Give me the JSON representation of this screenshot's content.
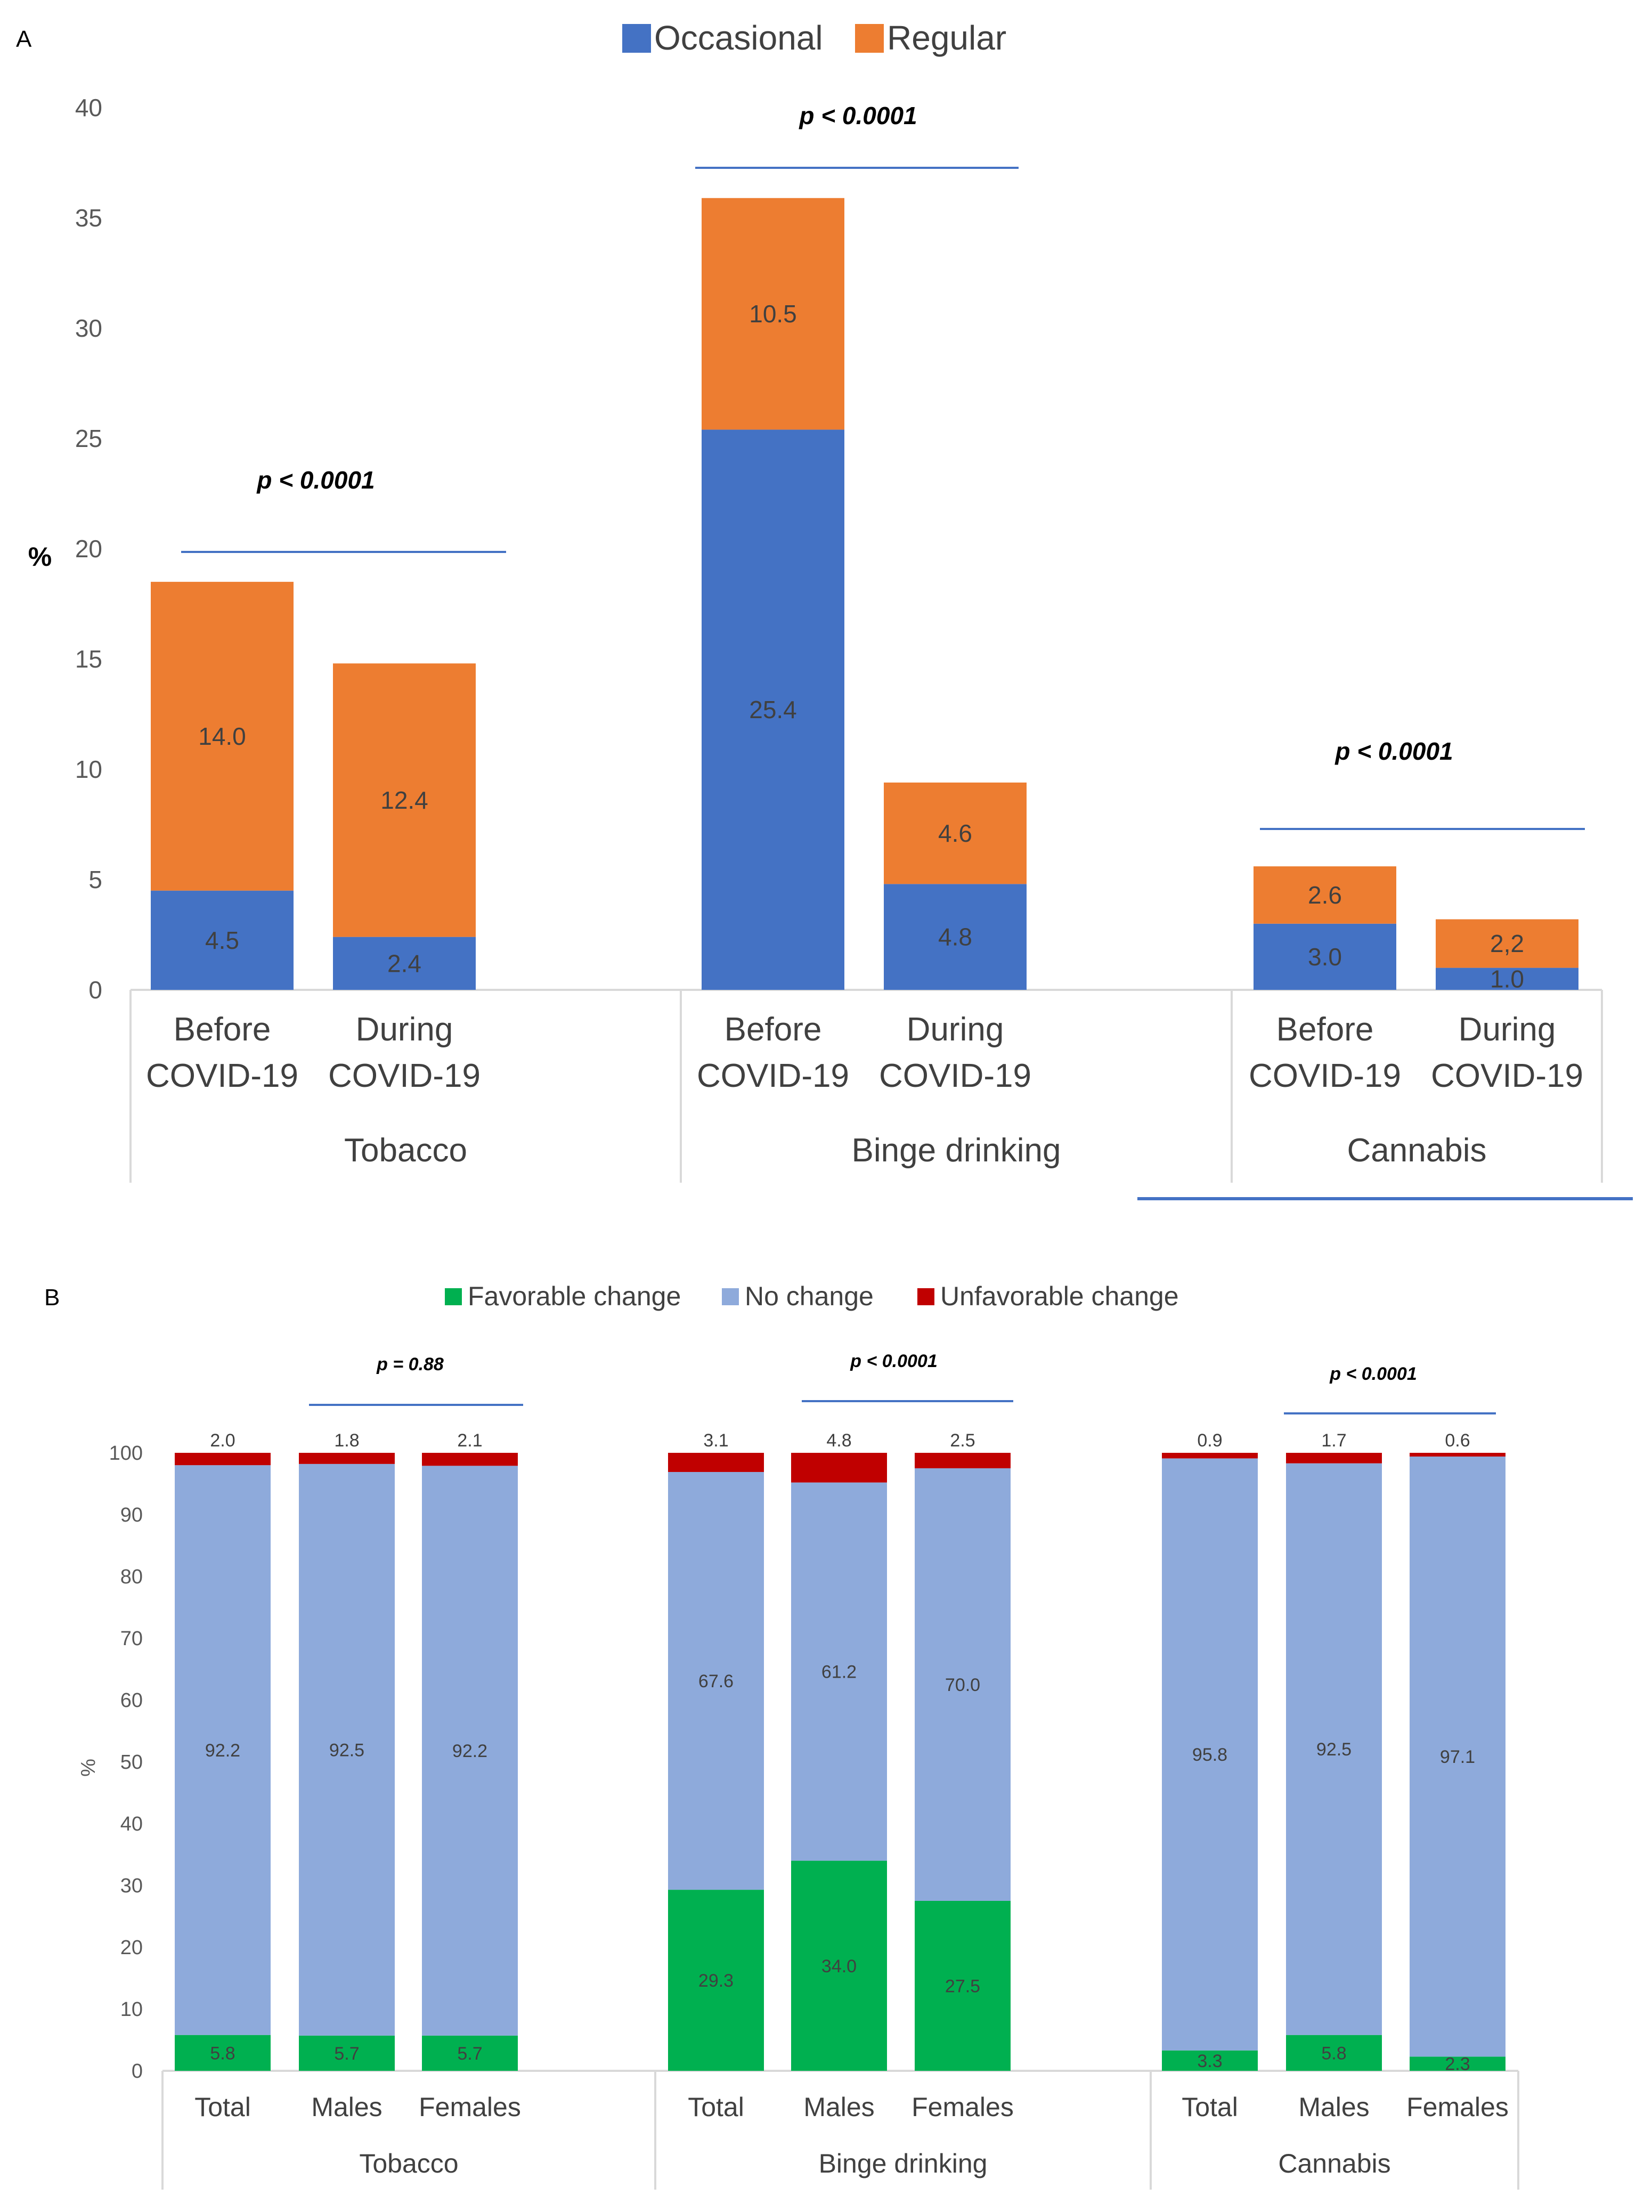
{
  "chart_data": [
    {
      "id": "A",
      "type": "bar",
      "stacked": true,
      "panel_label": "A",
      "ylabel": "%",
      "ylim": [
        0,
        40
      ],
      "yticks": [
        0,
        5,
        10,
        15,
        20,
        25,
        30,
        35,
        40
      ],
      "legend": [
        "Occasional",
        "Regular"
      ],
      "colors": {
        "Occasional": "#4472c4",
        "Regular": "#ed7d31",
        "line": "#4472c4"
      },
      "groups": [
        {
          "name": "Tobacco",
          "p_value": "p < 0.0001",
          "bars": [
            {
              "category": "Before COVID-19",
              "occasional": 4.5,
              "regular": 14.0,
              "occasional_label": "4.5",
              "regular_label": "14.0"
            },
            {
              "category": "During COVID-19",
              "occasional": 2.4,
              "regular": 12.4,
              "occasional_label": "2.4",
              "regular_label": "12.4"
            }
          ]
        },
        {
          "name": "Binge drinking",
          "p_value": "p < 0.0001",
          "bars": [
            {
              "category": "Before COVID-19",
              "occasional": 25.4,
              "regular": 10.5,
              "occasional_label": "25.4",
              "regular_label": "10.5"
            },
            {
              "category": "During COVID-19",
              "occasional": 4.8,
              "regular": 4.6,
              "occasional_label": "4.8",
              "regular_label": "4.6"
            }
          ]
        },
        {
          "name": "Cannabis",
          "p_value": "p < 0.0001",
          "bars": [
            {
              "category": "Before COVID-19",
              "occasional": 3.0,
              "regular": 2.6,
              "occasional_label": "3.0",
              "regular_label": "2.6"
            },
            {
              "category": "During COVID-19",
              "occasional": 1.0,
              "regular": 2.2,
              "occasional_label": "1.0",
              "regular_label": "2,2"
            }
          ]
        }
      ]
    },
    {
      "id": "B",
      "type": "bar",
      "stacked": true,
      "panel_label": "B",
      "ylabel": "%",
      "ylim": [
        0,
        100
      ],
      "yticks": [
        0,
        10,
        20,
        30,
        40,
        50,
        60,
        70,
        80,
        90,
        100
      ],
      "legend": [
        "Favorable change",
        "No change",
        "Unfavorable change"
      ],
      "colors": {
        "Favorable change": "#00b050",
        "No change": "#8eaadb",
        "Unfavorable change": "#c00000",
        "line": "#4472c4"
      },
      "groups": [
        {
          "name": "Tobacco",
          "p_value": "p = 0.88",
          "bars": [
            {
              "category": "Total",
              "favorable": 5.8,
              "no_change": 92.2,
              "unfavorable": 2.0,
              "labels": [
                "5.8",
                "92.2",
                "2.0"
              ]
            },
            {
              "category": "Males",
              "favorable": 5.7,
              "no_change": 92.5,
              "unfavorable": 1.8,
              "labels": [
                "5.7",
                "92.5",
                "1.8"
              ]
            },
            {
              "category": "Females",
              "favorable": 5.7,
              "no_change": 92.2,
              "unfavorable": 2.1,
              "labels": [
                "5.7",
                "92.2",
                "2.1"
              ]
            }
          ]
        },
        {
          "name": "Binge drinking",
          "p_value": "p < 0.0001",
          "bars": [
            {
              "category": "Total",
              "favorable": 29.3,
              "no_change": 67.6,
              "unfavorable": 3.1,
              "labels": [
                "29.3",
                "67.6",
                "3.1"
              ]
            },
            {
              "category": "Males",
              "favorable": 34.0,
              "no_change": 61.2,
              "unfavorable": 4.8,
              "labels": [
                "34.0",
                "61.2",
                "4.8"
              ]
            },
            {
              "category": "Females",
              "favorable": 27.5,
              "no_change": 70.0,
              "unfavorable": 2.5,
              "labels": [
                "27.5",
                "70.0",
                "2.5"
              ]
            }
          ]
        },
        {
          "name": "Cannabis",
          "p_value": "p < 0.0001",
          "bars": [
            {
              "category": "Total",
              "favorable": 3.3,
              "no_change": 95.8,
              "unfavorable": 0.9,
              "labels": [
                "3.3",
                "95.8",
                "0.9"
              ]
            },
            {
              "category": "Males",
              "favorable": 5.8,
              "no_change": 92.5,
              "unfavorable": 1.7,
              "labels": [
                "5.8",
                "92.5",
                "1.7"
              ]
            },
            {
              "category": "Females",
              "favorable": 2.3,
              "no_change": 97.1,
              "unfavorable": 0.6,
              "labels": [
                "2.3",
                "97.1",
                "0.6"
              ]
            }
          ]
        }
      ]
    }
  ]
}
